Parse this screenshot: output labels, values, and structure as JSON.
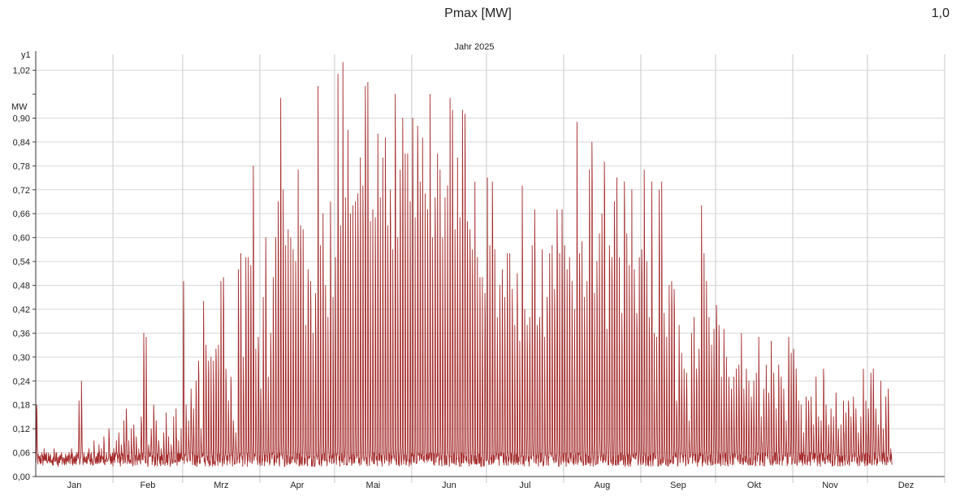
{
  "header": {
    "title": "Pmax [MW]",
    "value": "1,0"
  },
  "chart_data": {
    "type": "line",
    "title": "Jahr 2025",
    "ylabel_top": "y1",
    "yunit": "MW",
    "ylim": [
      0,
      1.06
    ],
    "yticks": [
      0.0,
      0.06,
      0.12,
      0.18,
      0.24,
      0.3,
      0.36,
      0.42,
      0.48,
      0.54,
      0.6,
      0.66,
      0.72,
      0.78,
      0.84,
      0.9,
      1.02
    ],
    "ytick_labels": [
      "0,00",
      "0,06",
      "0,12",
      "0,18",
      "0,24",
      "0,30",
      "0,36",
      "0,42",
      "0,48",
      "0,54",
      "0,60",
      "0,66",
      "0,72",
      "0,78",
      "0,84",
      "0,90",
      "1,02"
    ],
    "xlim_days": [
      0,
      365
    ],
    "months": [
      "Jan",
      "Feb",
      "Mrz",
      "Apr",
      "Mai",
      "Jun",
      "Jul",
      "Aug",
      "Sep",
      "Okt",
      "Nov",
      "Dez"
    ],
    "grid": true,
    "series": [
      {
        "color": "#a52a2a",
        "daily_peaks": [
          0.18,
          0.05,
          0.06,
          0.07,
          0.06,
          0.05,
          0.04,
          0.07,
          0.06,
          0.05,
          0.06,
          0.04,
          0.05,
          0.06,
          0.07,
          0.05,
          0.06,
          0.19,
          0.24,
          0.06,
          0.05,
          0.07,
          0.06,
          0.09,
          0.05,
          0.08,
          0.07,
          0.1,
          0.06,
          0.12,
          0.05,
          0.07,
          0.09,
          0.11,
          0.08,
          0.14,
          0.17,
          0.09,
          0.12,
          0.13,
          0.1,
          0.07,
          0.15,
          0.36,
          0.35,
          0.08,
          0.12,
          0.18,
          0.14,
          0.09,
          0.07,
          0.11,
          0.16,
          0.1,
          0.08,
          0.15,
          0.17,
          0.09,
          0.12,
          0.49,
          0.18,
          0.14,
          0.22,
          0.17,
          0.24,
          0.29,
          0.12,
          0.44,
          0.33,
          0.29,
          0.3,
          0.29,
          0.32,
          0.33,
          0.49,
          0.5,
          0.27,
          0.19,
          0.25,
          0.14,
          0.11,
          0.52,
          0.56,
          0.3,
          0.55,
          0.55,
          0.53,
          0.78,
          0.32,
          0.35,
          0.22,
          0.45,
          0.6,
          0.25,
          0.36,
          0.5,
          0.6,
          0.69,
          0.95,
          0.72,
          0.58,
          0.62,
          0.6,
          0.57,
          0.54,
          0.77,
          0.63,
          0.62,
          0.38,
          0.52,
          0.49,
          0.36,
          0.46,
          0.98,
          0.58,
          0.66,
          0.48,
          0.4,
          0.69,
          0.45,
          0.55,
          1.01,
          0.63,
          1.04,
          0.7,
          0.87,
          0.66,
          0.68,
          0.69,
          0.71,
          0.8,
          0.73,
          0.98,
          0.99,
          0.64,
          0.67,
          0.65,
          0.86,
          0.7,
          0.8,
          0.85,
          0.63,
          0.72,
          0.57,
          0.96,
          0.6,
          0.77,
          0.9,
          0.81,
          0.81,
          0.69,
          0.9,
          0.65,
          0.88,
          0.74,
          0.85,
          0.71,
          0.67,
          0.96,
          0.6,
          0.7,
          0.81,
          0.77,
          0.6,
          0.7,
          0.73,
          0.95,
          0.92,
          0.62,
          0.8,
          0.65,
          0.92,
          0.91,
          0.64,
          0.62,
          0.57,
          0.74,
          0.55,
          0.5,
          0.5,
          0.46,
          0.75,
          0.58,
          0.74,
          0.57,
          0.4,
          0.48,
          0.52,
          0.45,
          0.56,
          0.56,
          0.47,
          0.38,
          0.51,
          0.34,
          0.73,
          0.42,
          0.38,
          0.4,
          0.58,
          0.67,
          0.38,
          0.4,
          0.57,
          0.35,
          0.45,
          0.56,
          0.58,
          0.47,
          0.67,
          0.56,
          0.67,
          0.58,
          0.52,
          0.55,
          0.49,
          0.42,
          0.89,
          0.56,
          0.59,
          0.45,
          0.49,
          0.77,
          0.84,
          0.46,
          0.54,
          0.61,
          0.66,
          0.79,
          0.37,
          0.58,
          0.55,
          0.69,
          0.75,
          0.55,
          0.41,
          0.74,
          0.61,
          0.53,
          0.72,
          0.52,
          0.41,
          0.55,
          0.57,
          0.77,
          0.54,
          0.4,
          0.74,
          0.36,
          0.35,
          0.72,
          0.74,
          0.41,
          0.35,
          0.48,
          0.49,
          0.47,
          0.19,
          0.38,
          0.31,
          0.27,
          0.26,
          0.14,
          0.36,
          0.4,
          0.27,
          0.32,
          0.68,
          0.56,
          0.49,
          0.4,
          0.33,
          0.37,
          0.43,
          0.38,
          0.25,
          0.37,
          0.3,
          0.25,
          0.22,
          0.25,
          0.27,
          0.28,
          0.36,
          0.22,
          0.27,
          0.24,
          0.2,
          0.24,
          0.26,
          0.35,
          0.15,
          0.22,
          0.28,
          0.21,
          0.34,
          0.26,
          0.17,
          0.28,
          0.25,
          0.22,
          0.14,
          0.35,
          0.31,
          0.32,
          0.27,
          0.19,
          0.18,
          0.11,
          0.2,
          0.19,
          0.2,
          0.13,
          0.25,
          0.15,
          0.14,
          0.27,
          0.18,
          0.13,
          0.17,
          0.15,
          0.21,
          0.12,
          0.13,
          0.19,
          0.16,
          0.19,
          0.15,
          0.2,
          0.17,
          0.11,
          0.15,
          0.27,
          0.19,
          0.17,
          0.26,
          0.27,
          0.17,
          0.13,
          0.24,
          0.12,
          0.2,
          0.22,
          0.07
        ]
      }
    ]
  }
}
